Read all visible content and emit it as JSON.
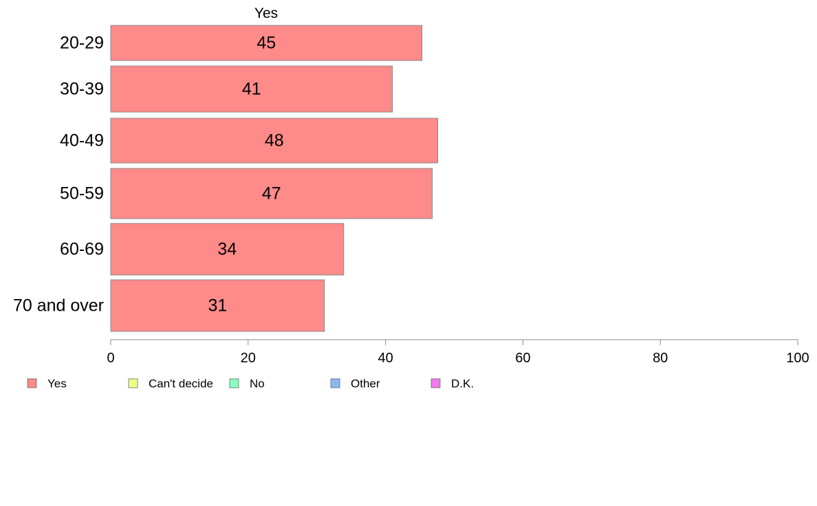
{
  "chart_data": {
    "type": "bar",
    "orientation": "horizontal",
    "title": "Yes",
    "categories": [
      "20-29",
      "30-39",
      "40-49",
      "50-59",
      "60-69",
      "70 and over"
    ],
    "series": [
      {
        "name": "Yes",
        "values": [
          45.3,
          41,
          47.6,
          46.8,
          33.9,
          31.1
        ],
        "labels": [
          "45",
          "41",
          "48",
          "47",
          "34",
          "31"
        ]
      }
    ],
    "xlim": [
      0,
      100
    ],
    "xticks": [
      0,
      20,
      40,
      60,
      80,
      100
    ],
    "grid": false,
    "legend": {
      "placement": "bottom",
      "entries": [
        {
          "name": "Yes",
          "color": "#ff8a8a"
        },
        {
          "name": "Can't decide",
          "color": "#eeff8a"
        },
        {
          "name": "No",
          "color": "#8affc0"
        },
        {
          "name": "Other",
          "color": "#8ab8f0"
        },
        {
          "name": "D.K.",
          "color": "#f07af0"
        }
      ]
    },
    "colors": {
      "bar": "#ff8a8a",
      "bar_edge": "#888888",
      "axis": "#888888"
    }
  }
}
